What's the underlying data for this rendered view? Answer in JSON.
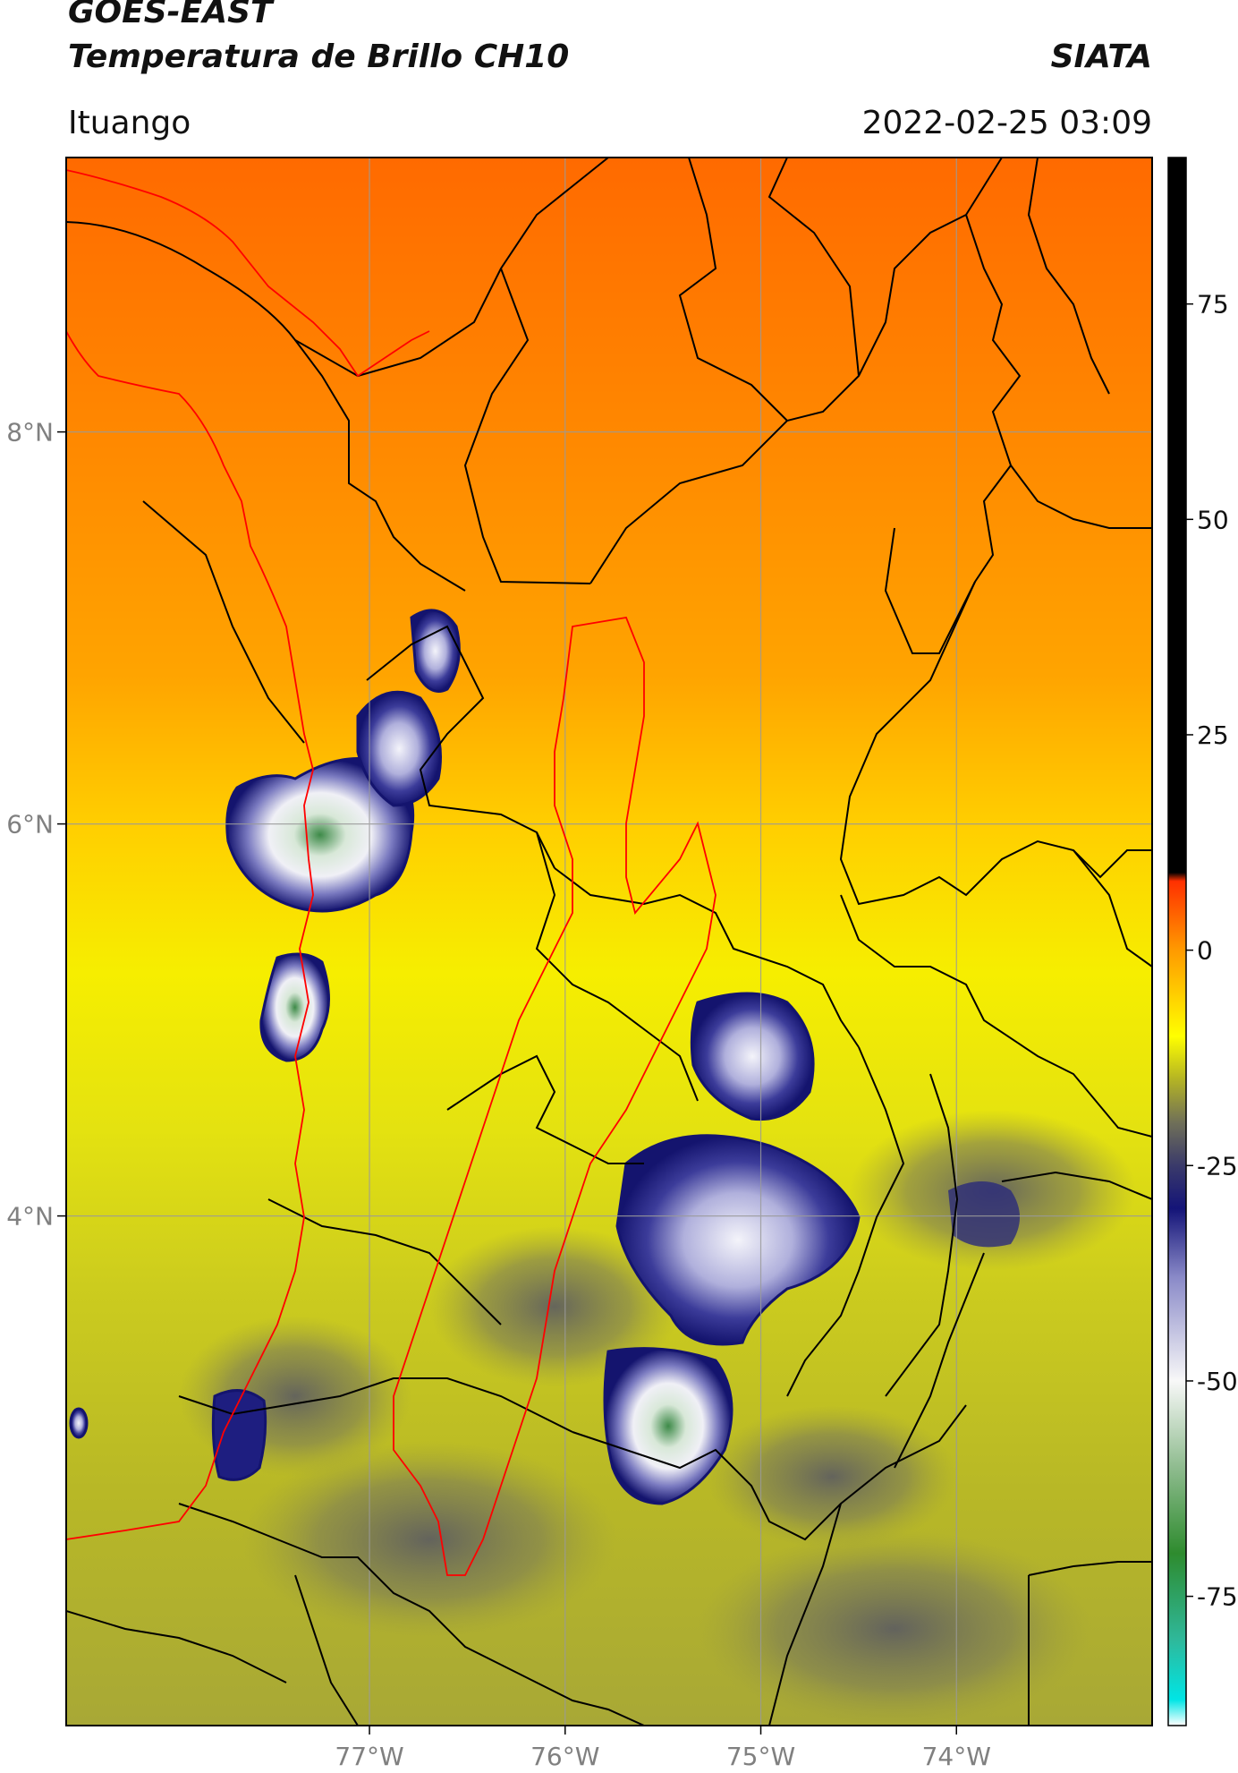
{
  "header": {
    "line1": "GOES-EAST",
    "line2": "Temperatura de Brillo CH10",
    "organization": "SIATA",
    "location": "Ituango",
    "datetime": "2022-02-25 03:09"
  },
  "map": {
    "lon_range": [
      -78.55,
      -73.0
    ],
    "lat_range": [
      1.4,
      9.4
    ],
    "lon_ticks": [
      {
        "value": -77,
        "label": "77°W"
      },
      {
        "value": -76,
        "label": "76°W"
      },
      {
        "value": -75,
        "label": "75°W"
      },
      {
        "value": -74,
        "label": "74°W"
      }
    ],
    "lat_ticks": [
      {
        "value": 8,
        "label": "8°N"
      },
      {
        "value": 6,
        "label": "6°N"
      },
      {
        "value": 4,
        "label": "4°N"
      }
    ],
    "gridlines": true,
    "colors": {
      "boundaries": "#000000",
      "coastline": "#ff0000",
      "basin": "#ff0000",
      "gridline": "#9a9a9a"
    }
  },
  "colorbar": {
    "range": [
      -90,
      92
    ],
    "ticks": [
      {
        "value": 75,
        "label": "75"
      },
      {
        "value": 50,
        "label": "50"
      },
      {
        "value": 25,
        "label": "25"
      },
      {
        "value": 0,
        "label": "0"
      },
      {
        "value": -25,
        "label": "-25"
      },
      {
        "value": -50,
        "label": "-50"
      },
      {
        "value": -75,
        "label": "-75"
      }
    ],
    "stops": [
      {
        "value": -90,
        "color": "#ffffff"
      },
      {
        "value": -87,
        "color": "#00e5e5"
      },
      {
        "value": -80,
        "color": "#2fb89a"
      },
      {
        "value": -70,
        "color": "#2e8b2e"
      },
      {
        "value": -60,
        "color": "#8fbc8f"
      },
      {
        "value": -50,
        "color": "#f8f8f8"
      },
      {
        "value": -38,
        "color": "#8a8ac8"
      },
      {
        "value": -30,
        "color": "#141478"
      },
      {
        "value": -25,
        "color": "#3a3a6a"
      },
      {
        "value": -20,
        "color": "#707058"
      },
      {
        "value": -15,
        "color": "#b4b424"
      },
      {
        "value": -10,
        "color": "#ffff00"
      },
      {
        "value": 0,
        "color": "#ff9a00"
      },
      {
        "value": 8,
        "color": "#ff3000"
      },
      {
        "value": 9,
        "color": "#000000"
      },
      {
        "value": 92,
        "color": "#000000"
      }
    ]
  }
}
